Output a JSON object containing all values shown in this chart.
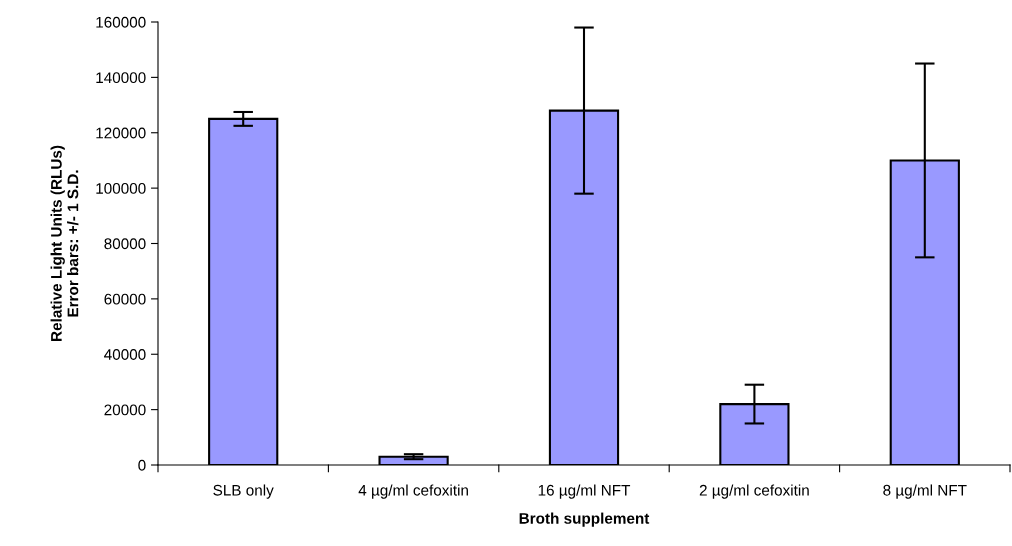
{
  "chart_data": {
    "type": "bar",
    "xlabel": "Broth supplement",
    "ylabel": "Relative Light Units (RLUs)\nError bars: +/- 1 S.D.",
    "categories": [
      "SLB only",
      "4 µg/ml cefoxitin",
      "16 µg/ml NFT",
      "2 µg/ml cefoxitin",
      "8 µg/ml NFT"
    ],
    "values": [
      125000,
      3000,
      128000,
      22000,
      110000
    ],
    "errors": [
      2500,
      900,
      30000,
      7000,
      35000
    ],
    "color": "#9999ff",
    "ylim": [
      0,
      160000
    ],
    "yticks": [
      0,
      20000,
      40000,
      60000,
      80000,
      100000,
      120000,
      140000,
      160000
    ],
    "grid": false,
    "legend": false
  }
}
